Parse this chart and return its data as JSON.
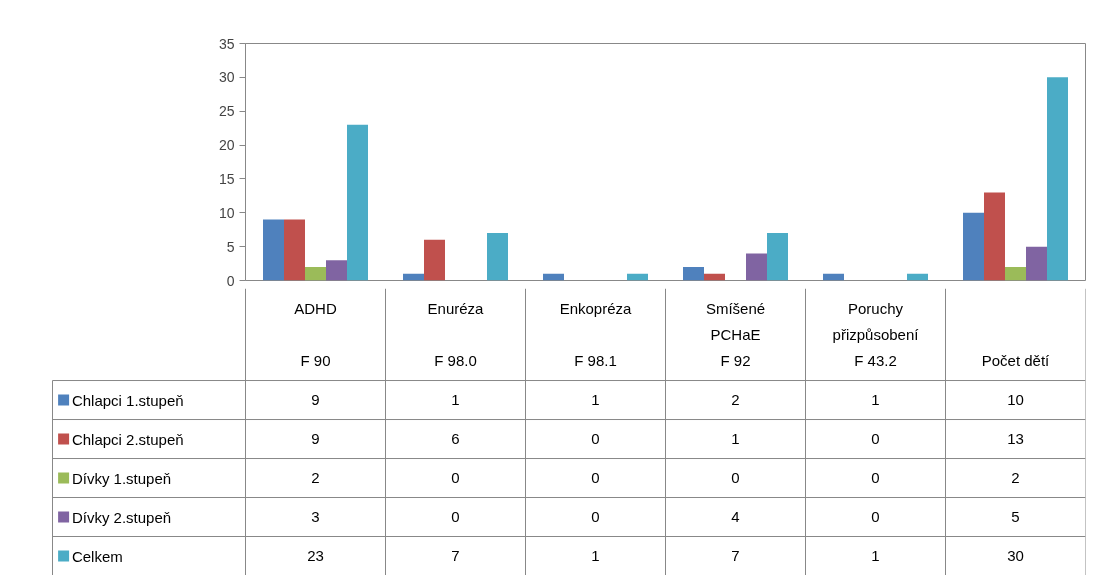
{
  "chart_data": {
    "type": "bar",
    "categories": [
      "ADHD\n\nF 90",
      "Enuréza\n\nF 98.0",
      "Enkopréza\n\nF 98.1",
      "Smíšené\nPCHaE\nF 92",
      "Poruchy\npřizpůsobení\nF 43.2",
      "\n\nPočet dětí"
    ],
    "series": [
      {
        "name": "Chlapci 1.stupeň",
        "color": "#4f81bd",
        "values": [
          9,
          1,
          1,
          2,
          1,
          10
        ]
      },
      {
        "name": "Chlapci 2.stupeň",
        "color": "#c0504d",
        "values": [
          9,
          6,
          0,
          1,
          0,
          13
        ]
      },
      {
        "name": "Dívky 1.stupeň",
        "color": "#9bbb59",
        "values": [
          2,
          0,
          0,
          0,
          0,
          2
        ]
      },
      {
        "name": "Dívky 2.stupeň",
        "color": "#8064a2",
        "values": [
          3,
          0,
          0,
          4,
          0,
          5
        ]
      },
      {
        "name": "Celkem",
        "color": "#4bacc6",
        "values": [
          23,
          7,
          1,
          7,
          1,
          30
        ]
      }
    ],
    "ylim": [
      0,
      35
    ],
    "yticks": [
      0,
      5,
      10,
      15,
      20,
      25,
      30,
      35
    ],
    "grid": false,
    "data_labels": true,
    "legend": "bottom left"
  }
}
